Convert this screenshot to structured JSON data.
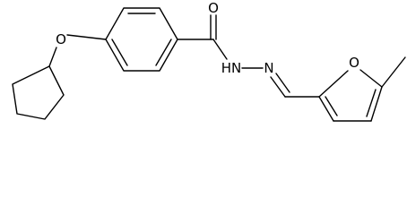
{
  "atoms": {
    "ether_oxygen": "O",
    "carbonyl_oxygen": "O",
    "amide_nitrogen": "HN",
    "imine_nitrogen": "N",
    "furan_oxygen": "O"
  }
}
